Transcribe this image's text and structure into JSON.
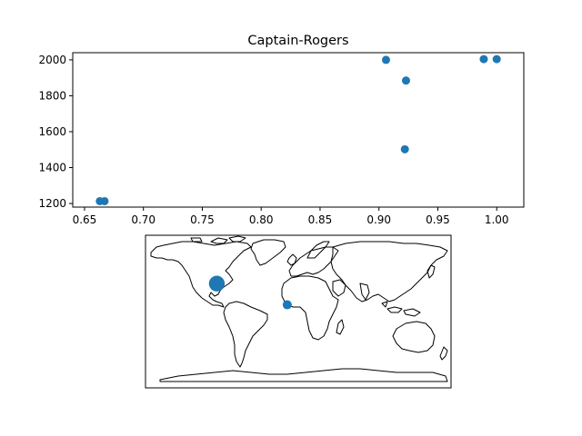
{
  "chart_data": [
    {
      "type": "scatter",
      "title": "Captain-Rogers",
      "xlabel": "",
      "ylabel": "",
      "xlim": [
        0.64,
        1.023
      ],
      "ylim": [
        1180,
        2040
      ],
      "x_ticks": [
        0.65,
        0.7,
        0.75,
        0.8,
        0.85,
        0.9,
        0.95,
        1.0
      ],
      "x_tick_labels": [
        "0.65",
        "0.70",
        "0.75",
        "0.80",
        "0.85",
        "0.90",
        "0.95",
        "1.00"
      ],
      "y_ticks": [
        1200,
        1400,
        1600,
        1800,
        2000
      ],
      "y_tick_labels": [
        "1200",
        "1400",
        "1600",
        "1800",
        "2000"
      ],
      "grid": false,
      "color": "#1f77b4",
      "points": [
        {
          "x": 0.663,
          "y": 1213
        },
        {
          "x": 0.667,
          "y": 1213
        },
        {
          "x": 0.906,
          "y": 2000
        },
        {
          "x": 0.923,
          "y": 1885
        },
        {
          "x": 0.922,
          "y": 1502
        },
        {
          "x": 0.989,
          "y": 2004
        },
        {
          "x": 1.0,
          "y": 2004
        }
      ]
    },
    {
      "type": "scatter",
      "title": "",
      "projection": "plate-carree-world-map",
      "xlim": [
        -180,
        180
      ],
      "ylim": [
        -90,
        90
      ],
      "color": "#1f77b4",
      "points": [
        {
          "lon": -96,
          "lat": 33,
          "size": 3
        },
        {
          "lon": -13,
          "lat": 8,
          "size": 1
        }
      ]
    }
  ]
}
